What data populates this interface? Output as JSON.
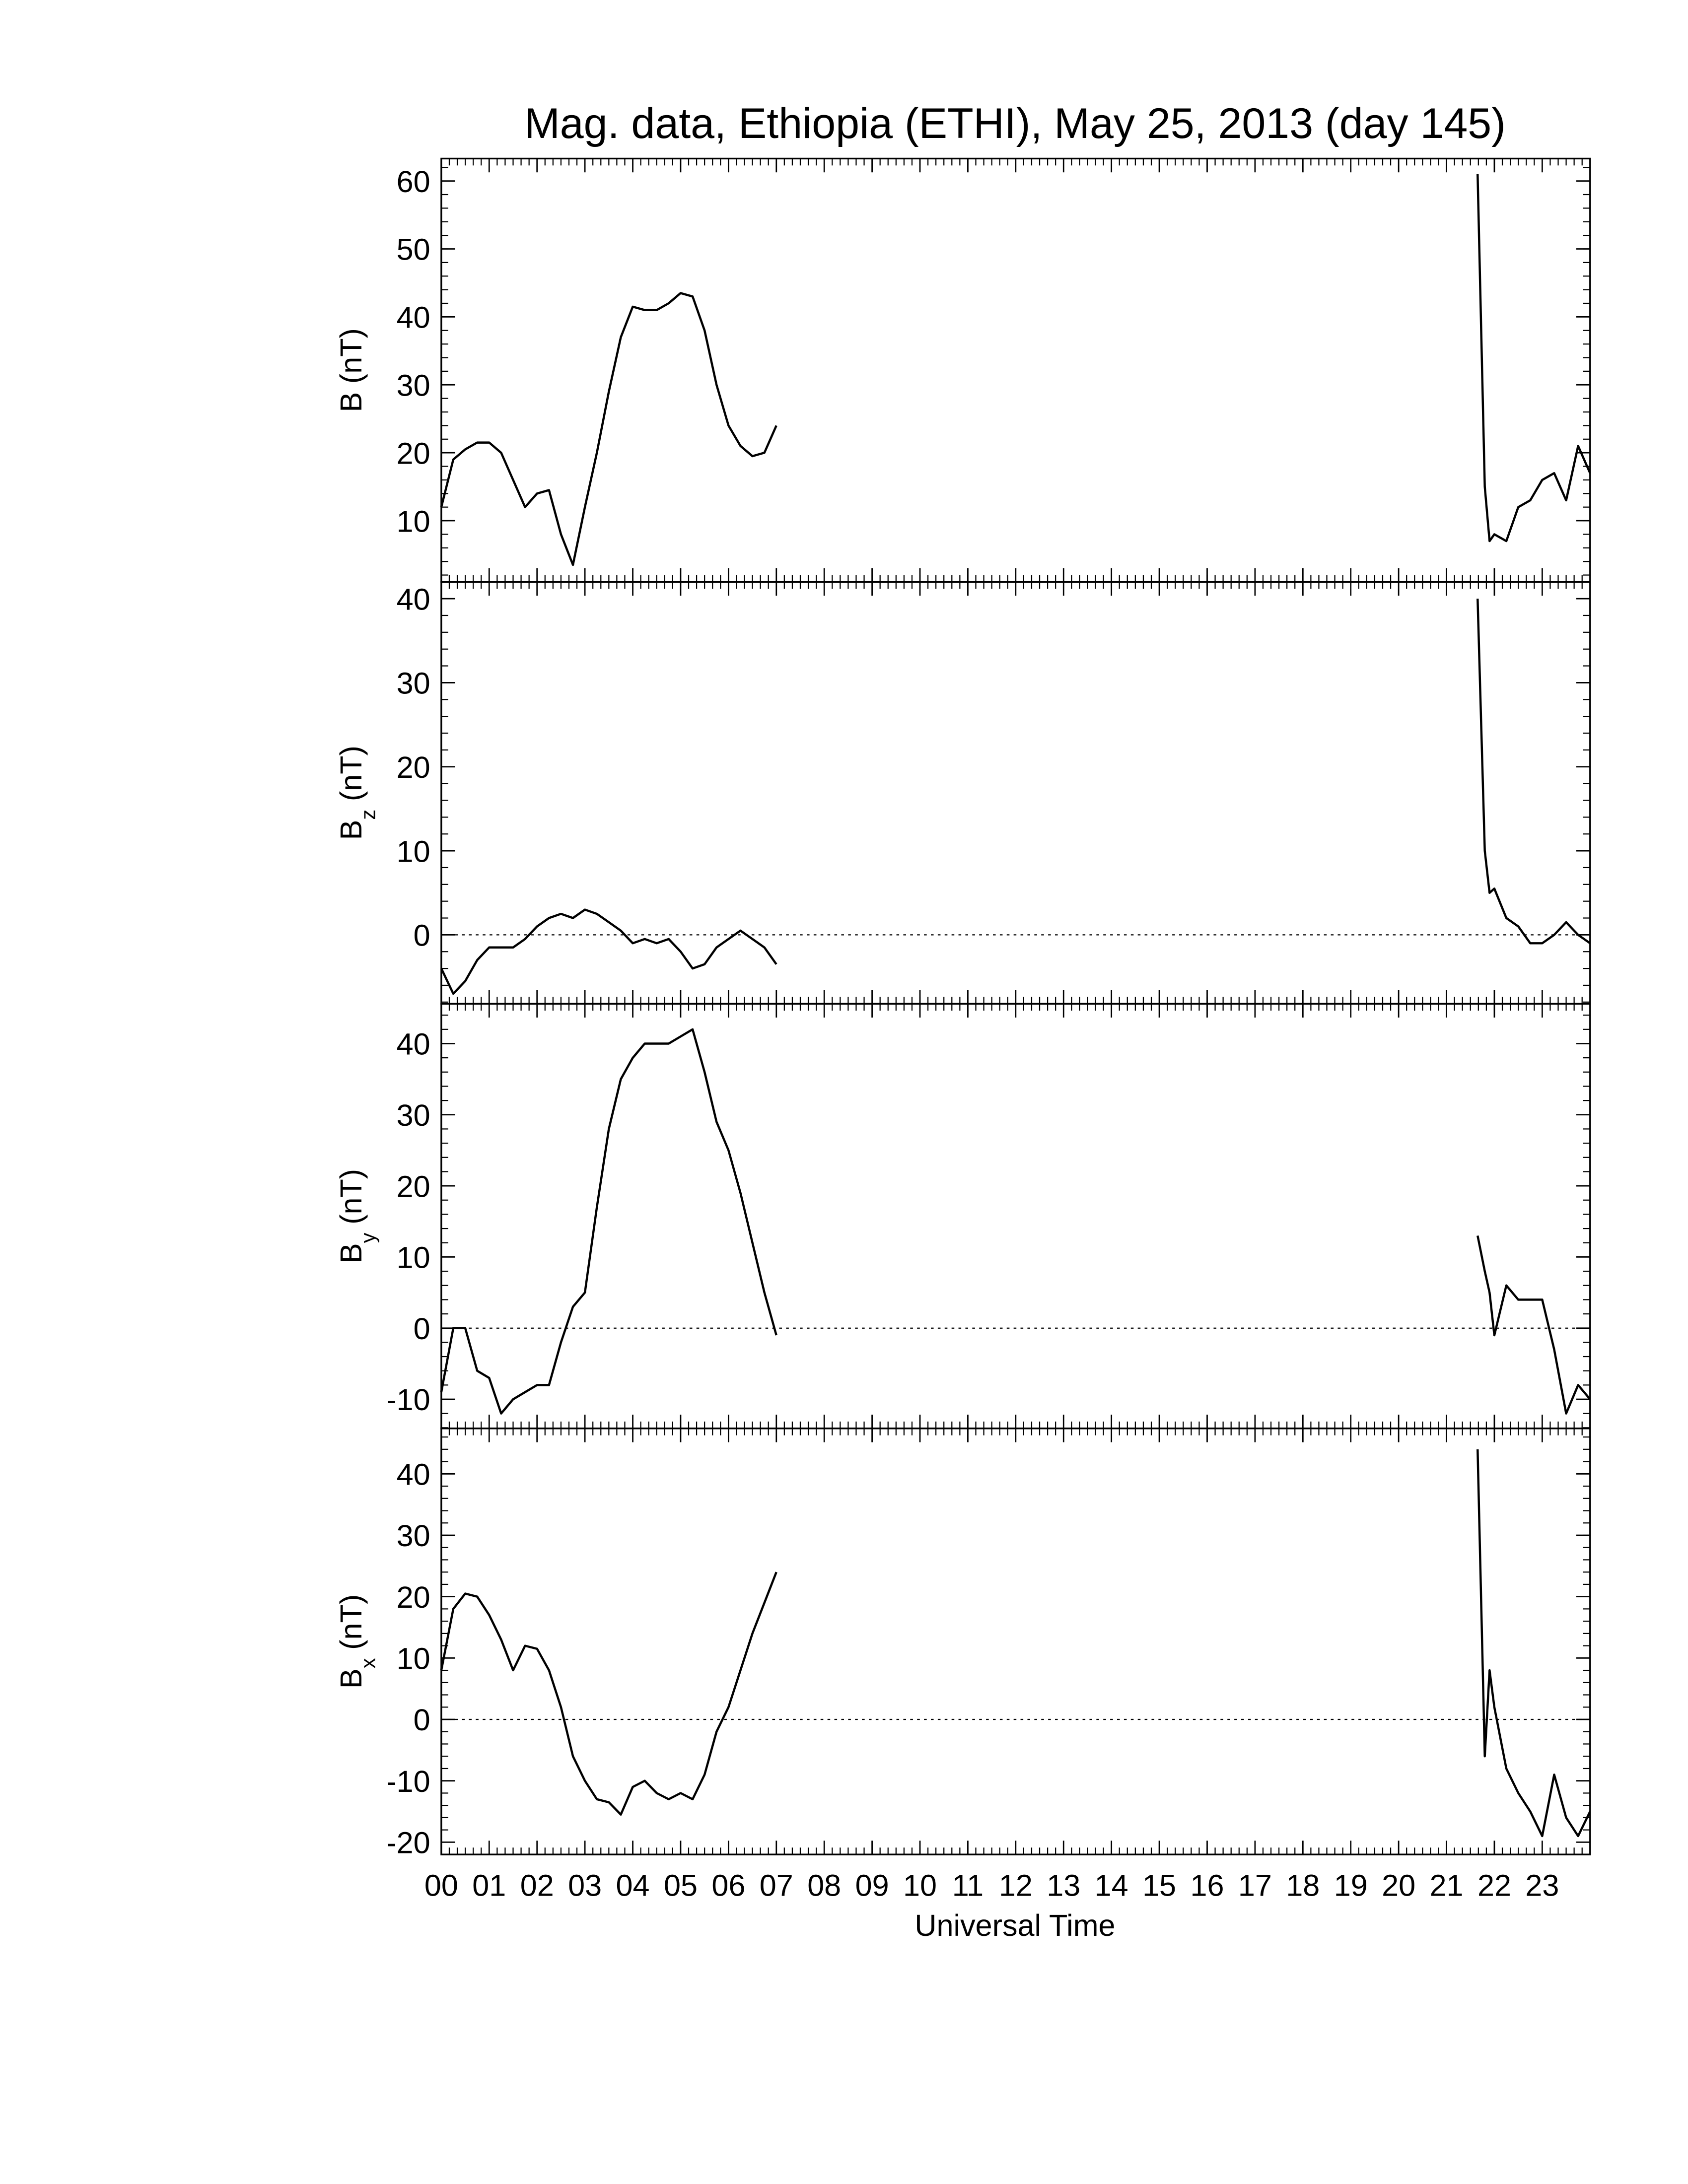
{
  "chart_data": {
    "type": "line",
    "title": "Mag. data, Ethiopia (ETHI), May 25, 2013 (day 145)",
    "xlabel": "Universal Time",
    "xlim": [
      0,
      24
    ],
    "xticks": [
      {
        "value": 0,
        "label": "00"
      },
      {
        "value": 1,
        "label": "01"
      },
      {
        "value": 2,
        "label": "02"
      },
      {
        "value": 3,
        "label": "03"
      },
      {
        "value": 4,
        "label": "04"
      },
      {
        "value": 5,
        "label": "05"
      },
      {
        "value": 6,
        "label": "06"
      },
      {
        "value": 7,
        "label": "07"
      },
      {
        "value": 8,
        "label": "08"
      },
      {
        "value": 9,
        "label": "09"
      },
      {
        "value": 10,
        "label": "10"
      },
      {
        "value": 11,
        "label": "11"
      },
      {
        "value": 12,
        "label": "12"
      },
      {
        "value": 13,
        "label": "13"
      },
      {
        "value": 14,
        "label": "14"
      },
      {
        "value": 15,
        "label": "15"
      },
      {
        "value": 16,
        "label": "16"
      },
      {
        "value": 17,
        "label": "17"
      },
      {
        "value": 18,
        "label": "18"
      },
      {
        "value": 19,
        "label": "19"
      },
      {
        "value": 20,
        "label": "20"
      },
      {
        "value": 21,
        "label": "21"
      },
      {
        "value": 22,
        "label": "22"
      },
      {
        "value": 23,
        "label": "23"
      }
    ],
    "x_minor_per_major": 6,
    "y_minor_per_major": 5,
    "color": "#000000",
    "x": [
      0,
      0.25,
      0.5,
      0.75,
      1,
      1.25,
      1.5,
      1.75,
      2,
      2.25,
      2.5,
      2.75,
      3,
      3.25,
      3.5,
      3.75,
      4,
      4.25,
      4.5,
      4.75,
      5,
      5.25,
      5.5,
      5.75,
      6,
      6.25,
      6.5,
      6.75,
      7,
      14,
      21.65,
      21.8,
      21.9,
      22,
      22.25,
      22.5,
      22.75,
      23,
      23.25,
      23.5,
      23.75,
      24
    ],
    "panels": [
      {
        "ylabel": "B",
        "ylabel_unit": "(nT)",
        "ylim": [
          1,
          63.3
        ],
        "yticks": [
          10,
          20,
          30,
          40,
          50,
          60
        ],
        "zero_line": false,
        "values": [
          12,
          19,
          20.5,
          21.5,
          21.5,
          20,
          16,
          12,
          14,
          14.5,
          8,
          3.5,
          12,
          20,
          29,
          37,
          41.5,
          41,
          41,
          42,
          43.5,
          43,
          38,
          30,
          24,
          21,
          19.5,
          20,
          24,
          null,
          61,
          15,
          7,
          8,
          7,
          12,
          13,
          16,
          17,
          13,
          21,
          17
        ]
      },
      {
        "ylabel": "B",
        "ylabel_sub": "z",
        "ylabel_unit": "(nT)",
        "ylim": [
          -8.2,
          42
        ],
        "yticks": [
          0,
          10,
          20,
          30,
          40
        ],
        "zero_line": true,
        "values": [
          -4,
          -7,
          -5.5,
          -3,
          -1.5,
          -1.5,
          -1.5,
          -0.5,
          1,
          2,
          2.5,
          2,
          3,
          2.5,
          1.5,
          0.5,
          -1,
          -0.5,
          -1,
          -0.5,
          -2,
          -4,
          -3.5,
          -1.5,
          -0.5,
          0.5,
          -0.5,
          -1.5,
          -3.5,
          null,
          40,
          10,
          5,
          5.5,
          2,
          1,
          -1,
          -1,
          0,
          1.5,
          0,
          -1
        ]
      },
      {
        "ylabel": "B",
        "ylabel_sub": "y",
        "ylabel_unit": "(nT)",
        "ylim": [
          -14.1,
          45.6
        ],
        "yticks": [
          -10,
          0,
          10,
          20,
          30,
          40
        ],
        "zero_line": true,
        "values": [
          -9,
          0,
          0,
          -6,
          -7,
          -12,
          -10,
          -9,
          -8,
          -8,
          -2,
          3,
          5,
          17,
          28,
          35,
          38,
          40,
          40,
          40,
          41,
          42,
          36,
          29,
          25,
          19,
          12,
          5,
          -1,
          null,
          13,
          8,
          5,
          -1,
          6,
          4,
          4,
          4,
          -3,
          -12,
          -8,
          -10
        ]
      },
      {
        "ylabel": "B",
        "ylabel_sub": "x",
        "ylabel_unit": "(nT)",
        "ylim": [
          -22,
          47.4
        ],
        "yticks": [
          -20,
          -10,
          0,
          10,
          20,
          30,
          40
        ],
        "zero_line": true,
        "values": [
          8,
          18,
          20.5,
          20,
          17,
          13,
          8,
          12,
          11.5,
          8,
          2,
          -6,
          -10,
          -13,
          -13.5,
          -15.5,
          -11,
          -10,
          -12,
          -13,
          -12,
          -13,
          -9,
          -2,
          2,
          8,
          14,
          19,
          24,
          null,
          44,
          -6,
          8,
          2,
          -8,
          -12,
          -15,
          -19,
          -9,
          -16,
          -19,
          -15
        ]
      }
    ]
  }
}
